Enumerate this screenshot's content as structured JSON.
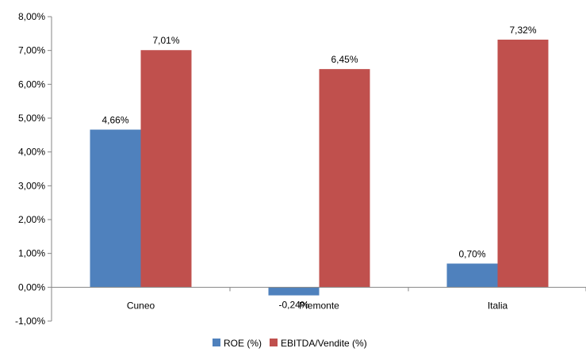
{
  "chart_data": {
    "type": "bar",
    "categories": [
      "Cuneo",
      "Piemonte",
      "Italia"
    ],
    "series": [
      {
        "name": "ROE (%)",
        "values": [
          4.66,
          -0.24,
          0.7
        ],
        "labels": [
          "4,66%",
          "-0,24%",
          "0,70%"
        ],
        "color": "#4f81bd"
      },
      {
        "name": "EBITDA/Vendite (%)",
        "values": [
          7.01,
          6.45,
          7.32
        ],
        "labels": [
          "7,01%",
          "6,45%",
          "7,32%"
        ],
        "color": "#c0504d"
      }
    ],
    "ylim": [
      -1,
      8
    ],
    "yticks": [
      -1,
      0,
      1,
      2,
      3,
      4,
      5,
      6,
      7,
      8
    ],
    "ytick_labels": [
      "-1,00%",
      "0,00%",
      "1,00%",
      "2,00%",
      "3,00%",
      "4,00%",
      "5,00%",
      "6,00%",
      "7,00%",
      "8,00%"
    ],
    "title": "",
    "xlabel": "",
    "ylabel": "",
    "grid": false,
    "legend_position": "bottom"
  }
}
